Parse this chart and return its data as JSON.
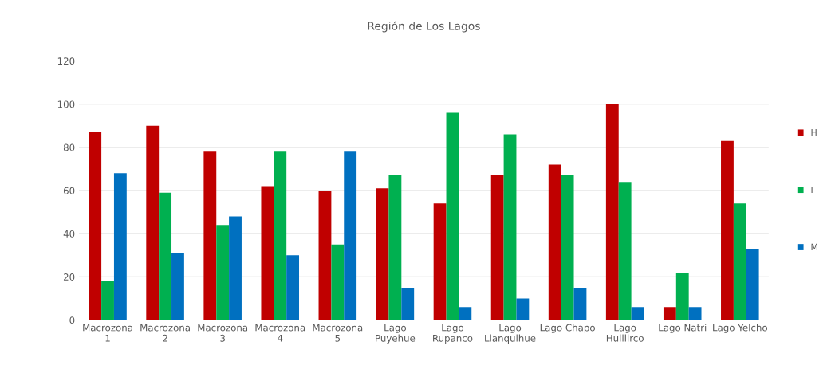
{
  "chart_data": {
    "type": "bar",
    "title": "Región de Los Lagos",
    "categories": [
      "Macrozona\n1",
      "Macrozona\n2",
      "Macrozona\n3",
      "Macrozona\n4",
      "Macrozona\n5",
      "Lago\nPuyehue",
      "Lago\nRupanco",
      "Lago\nLlanquihue",
      "Lago Chapo",
      "Lago\nHuillirco",
      "Lago Natri",
      "Lago Yelcho"
    ],
    "series": [
      {
        "name": "H",
        "color": "#c00000",
        "values": [
          87,
          90,
          78,
          62,
          60,
          61,
          54,
          67,
          72,
          100,
          6,
          83
        ]
      },
      {
        "name": "I",
        "color": "#00b050",
        "values": [
          18,
          59,
          44,
          78,
          35,
          67,
          96,
          86,
          67,
          64,
          22,
          54
        ]
      },
      {
        "name": "M",
        "color": "#0070c0",
        "values": [
          68,
          31,
          48,
          30,
          78,
          15,
          6,
          10,
          15,
          6,
          6,
          33
        ]
      }
    ],
    "ylim": [
      0,
      120
    ],
    "yticks": [
      0,
      20,
      40,
      60,
      80,
      100,
      120
    ],
    "grid": "y",
    "legend": "right"
  }
}
